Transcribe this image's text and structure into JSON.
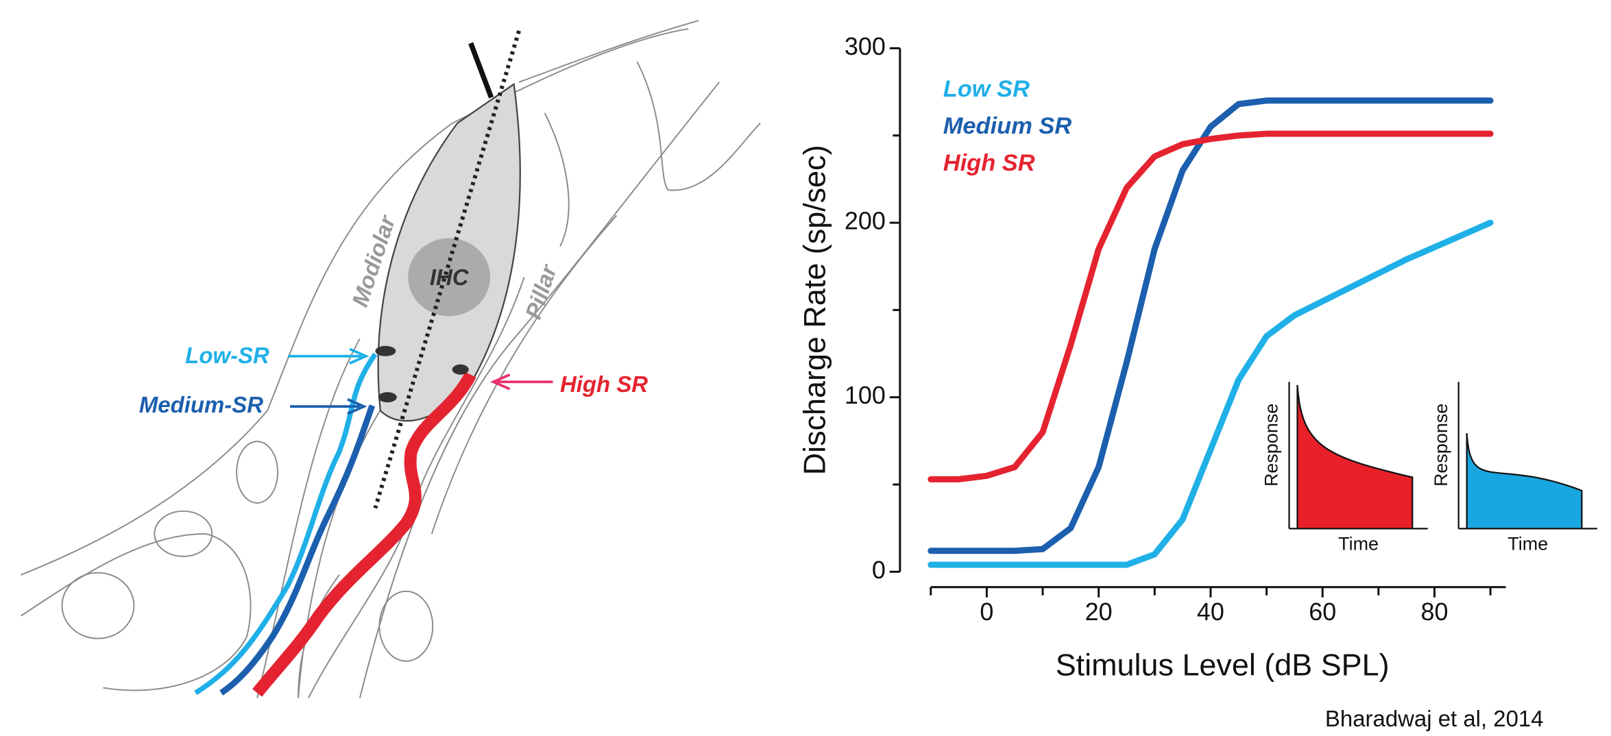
{
  "chart_data": {
    "type": "line",
    "y_label": "Discharge Rate (sp/sec)",
    "x_label": "Stimulus Level (dB SPL)",
    "x": [
      -10,
      -5,
      0,
      5,
      10,
      15,
      20,
      25,
      30,
      35,
      40,
      45,
      50,
      55,
      60,
      65,
      70,
      75,
      80,
      85,
      90
    ],
    "series": [
      {
        "name": "Low SR",
        "color": "#1fb0e8",
        "values": [
          4,
          4,
          4,
          4,
          4,
          4,
          4,
          4,
          10,
          30,
          70,
          110,
          135,
          147,
          155,
          163,
          171,
          179,
          186,
          193,
          200
        ]
      },
      {
        "name": "Medium SR",
        "color": "#1b5fae",
        "values": [
          12,
          12,
          12,
          12,
          13,
          25,
          60,
          120,
          185,
          230,
          255,
          268,
          270,
          270,
          270,
          270,
          270,
          270,
          270,
          270,
          270
        ]
      },
      {
        "name": "High SR",
        "color": "#e52330",
        "values": [
          53,
          53,
          55,
          60,
          80,
          130,
          185,
          220,
          238,
          245,
          248,
          250,
          251,
          251,
          251,
          251,
          251,
          251,
          251,
          251,
          251
        ]
      }
    ],
    "xlim": [
      -10,
      92.75
    ],
    "xticks": [
      0,
      20,
      40,
      60,
      80
    ],
    "xminorticks": [
      -10,
      10,
      30,
      50,
      70,
      90
    ],
    "ylim": [
      0,
      300
    ],
    "yticks": [
      0,
      100,
      200,
      300
    ],
    "yminorticks": [
      50,
      150,
      250
    ]
  },
  "insets": [
    {
      "y_label": "Response",
      "x_label": "Time",
      "color": "#e8202a"
    },
    {
      "y_label": "Response",
      "x_label": "Time",
      "color": "#1aa6e0"
    }
  ],
  "diagram": {
    "labels": {
      "cell": "IHC",
      "modiolar": "Modiolar",
      "pillar": "Pillar",
      "low": "Low-SR",
      "medium": "Medium-SR",
      "high": "High SR"
    }
  },
  "citation": "Bharadwaj et al, 2014"
}
